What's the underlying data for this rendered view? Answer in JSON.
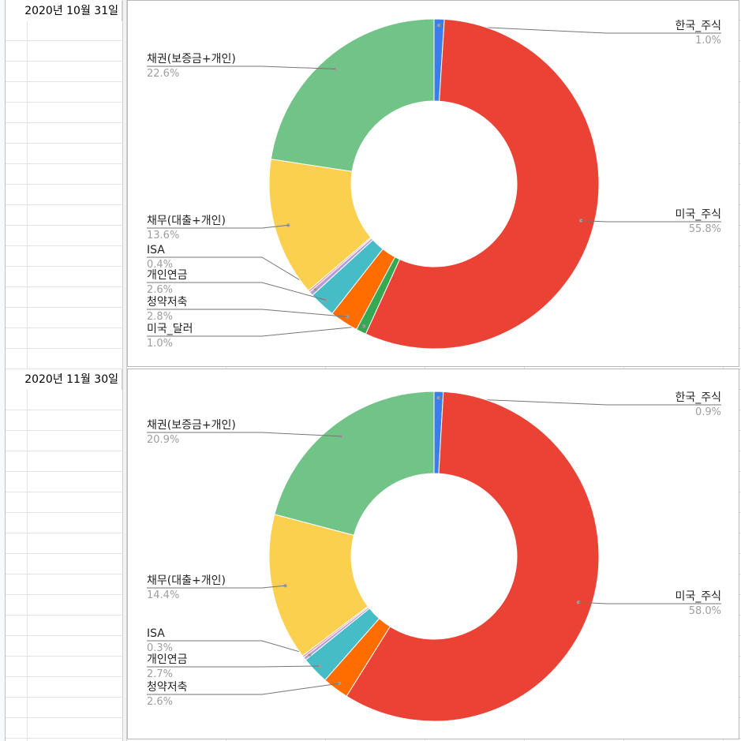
{
  "sheet": {
    "date_cells": [
      "2020년 10월 31일",
      "2020년 11월 30일"
    ]
  },
  "colors": {
    "한국_주식": "#3b7ded",
    "미국_주식": "#ea4335",
    "미국_달러": "#34a853",
    "청약저축": "#ff6d01",
    "개인연금": "#46bdc6",
    "ISA": "#b39ddb",
    "채무(대출+개인)": "#fbd04f",
    "채권(보증금+개인)": "#72c388",
    "extra": "#ea9ca7"
  },
  "chart_data": [
    {
      "type": "pie",
      "donut": true,
      "title": "",
      "slices": [
        {
          "label": "한국_주식",
          "pct_label": "1.0%",
          "value": 1.0
        },
        {
          "label": "미국_주식",
          "pct_label": "55.8%",
          "value": 55.8
        },
        {
          "label": "미국_달러",
          "pct_label": "1.0%",
          "value": 1.0
        },
        {
          "label": "청약저축",
          "pct_label": "2.8%",
          "value": 2.8
        },
        {
          "label": "개인연금",
          "pct_label": "2.6%",
          "value": 2.6
        },
        {
          "label": "ISA",
          "pct_label": "0.4%",
          "value": 0.4
        },
        {
          "label": "",
          "pct_label": "",
          "value": 0.2
        },
        {
          "label": "채무(대출+개인)",
          "pct_label": "13.6%",
          "value": 13.6
        },
        {
          "label": "채권(보증금+개인)",
          "pct_label": "22.6%",
          "value": 22.6
        }
      ]
    },
    {
      "type": "pie",
      "donut": true,
      "title": "",
      "slices": [
        {
          "label": "한국_주식",
          "pct_label": "0.9%",
          "value": 0.9
        },
        {
          "label": "미국_주식",
          "pct_label": "58.0%",
          "value": 58.0
        },
        {
          "label": "청약저축",
          "pct_label": "2.6%",
          "value": 2.6
        },
        {
          "label": "개인연금",
          "pct_label": "2.7%",
          "value": 2.7
        },
        {
          "label": "ISA",
          "pct_label": "0.3%",
          "value": 0.3
        },
        {
          "label": "",
          "pct_label": "",
          "value": 0.2
        },
        {
          "label": "채무(대출+개인)",
          "pct_label": "14.4%",
          "value": 14.4
        },
        {
          "label": "채권(보증금+개인)",
          "pct_label": "20.9%",
          "value": 20.9
        }
      ]
    }
  ]
}
